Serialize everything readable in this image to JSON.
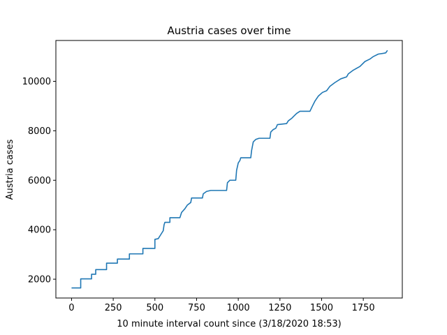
{
  "chart_data": {
    "type": "line",
    "title": "Austria cases over time",
    "xlabel": "10 minute interval count since (3/18/2020 18:53)",
    "ylabel": "Austria cases",
    "xlim": [
      -94,
      1984
    ],
    "ylim": [
      1240,
      11650
    ],
    "x_ticks": [
      0,
      250,
      500,
      750,
      1000,
      1250,
      1500,
      1750
    ],
    "y_ticks": [
      2000,
      4000,
      6000,
      8000,
      10000
    ],
    "grid": false,
    "legend": "none",
    "line_color": "#1f77b4",
    "series": [
      {
        "points": [
          [
            0,
            1646
          ],
          [
            55,
            1646
          ],
          [
            55,
            2013
          ],
          [
            120,
            2013
          ],
          [
            120,
            2200
          ],
          [
            145,
            2200
          ],
          [
            145,
            2388
          ],
          [
            210,
            2388
          ],
          [
            210,
            2649
          ],
          [
            275,
            2649
          ],
          [
            275,
            2814
          ],
          [
            347,
            2814
          ],
          [
            347,
            3024
          ],
          [
            428,
            3024
          ],
          [
            428,
            3244
          ],
          [
            500,
            3244
          ],
          [
            500,
            3611
          ],
          [
            520,
            3640
          ],
          [
            535,
            3800
          ],
          [
            550,
            3960
          ],
          [
            555,
            4200
          ],
          [
            560,
            4300
          ],
          [
            590,
            4300
          ],
          [
            590,
            4486
          ],
          [
            650,
            4486
          ],
          [
            660,
            4700
          ],
          [
            680,
            4850
          ],
          [
            695,
            5000
          ],
          [
            715,
            5100
          ],
          [
            720,
            5283
          ],
          [
            785,
            5283
          ],
          [
            790,
            5450
          ],
          [
            810,
            5550
          ],
          [
            835,
            5588
          ],
          [
            930,
            5588
          ],
          [
            935,
            5900
          ],
          [
            950,
            6001
          ],
          [
            985,
            6001
          ],
          [
            990,
            6400
          ],
          [
            1000,
            6700
          ],
          [
            1010,
            6800
          ],
          [
            1015,
            6909
          ],
          [
            1075,
            6909
          ],
          [
            1080,
            7200
          ],
          [
            1090,
            7550
          ],
          [
            1105,
            7650
          ],
          [
            1125,
            7697
          ],
          [
            1190,
            7697
          ],
          [
            1195,
            7950
          ],
          [
            1210,
            8050
          ],
          [
            1225,
            8100
          ],
          [
            1235,
            8250
          ],
          [
            1290,
            8291
          ],
          [
            1300,
            8400
          ],
          [
            1320,
            8500
          ],
          [
            1335,
            8600
          ],
          [
            1350,
            8700
          ],
          [
            1370,
            8788
          ],
          [
            1430,
            8788
          ],
          [
            1445,
            9000
          ],
          [
            1460,
            9200
          ],
          [
            1480,
            9400
          ],
          [
            1505,
            9550
          ],
          [
            1530,
            9618
          ],
          [
            1550,
            9800
          ],
          [
            1580,
            9950
          ],
          [
            1615,
            10100
          ],
          [
            1650,
            10180
          ],
          [
            1660,
            10300
          ],
          [
            1690,
            10450
          ],
          [
            1730,
            10600
          ],
          [
            1760,
            10800
          ],
          [
            1790,
            10900
          ],
          [
            1810,
            11000
          ],
          [
            1840,
            11100
          ],
          [
            1870,
            11129
          ],
          [
            1885,
            11150
          ],
          [
            1895,
            11250
          ]
        ]
      }
    ]
  }
}
